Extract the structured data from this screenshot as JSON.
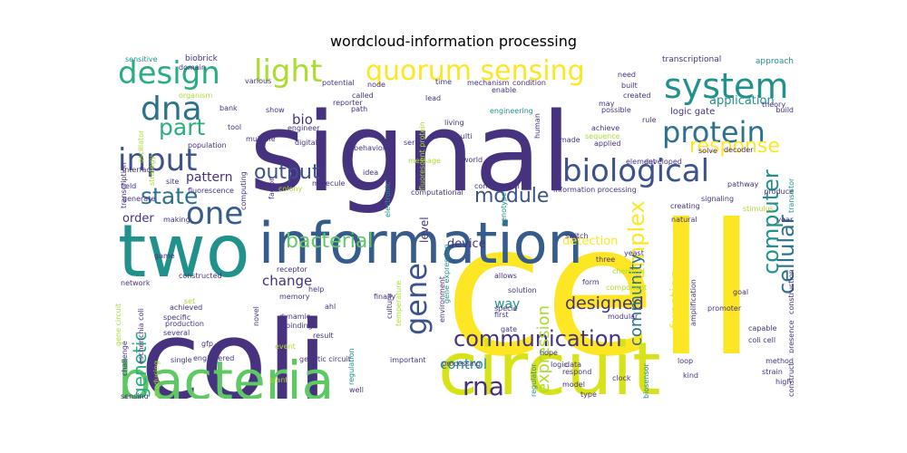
{
  "title": "wordcloud-information processing",
  "palette": {
    "dark_purple": "#46327e",
    "indigo": "#3b528b",
    "blue": "#365c8d",
    "slate": "#2c728e",
    "teal": "#21918c",
    "green_teal": "#28ae80",
    "green": "#5ec962",
    "lime": "#addc30",
    "yellow": "#fde725",
    "pale_green": "#9fda3a",
    "deep": "#440154"
  },
  "words": [
    {
      "text": "cell",
      "color": "#fde725"
    },
    {
      "text": "signal",
      "color": "#46327e"
    },
    {
      "text": "coli",
      "color": "#46327e"
    },
    {
      "text": "information",
      "color": "#365c8d"
    },
    {
      "text": "circuit",
      "color": "#d8e219"
    },
    {
      "text": "two",
      "color": "#21918c"
    },
    {
      "text": "bacteria",
      "color": "#5ec962"
    },
    {
      "text": "biological",
      "color": "#3b528b"
    },
    {
      "text": "system",
      "color": "#21918c"
    },
    {
      "text": "protein",
      "color": "#2c728e"
    },
    {
      "text": "quorum sensing",
      "color": "#fde725"
    },
    {
      "text": "design",
      "color": "#28ae80"
    },
    {
      "text": "input",
      "color": "#3b528b"
    },
    {
      "text": "dna",
      "color": "#2c728e"
    },
    {
      "text": "light",
      "color": "#addc30"
    },
    {
      "text": "one",
      "color": "#365c8d"
    },
    {
      "text": "output",
      "color": "#3b528b"
    },
    {
      "text": "response",
      "color": "#fde725"
    },
    {
      "text": "communication",
      "color": "#46327e"
    },
    {
      "text": "part",
      "color": "#28ae80"
    },
    {
      "text": "state",
      "color": "#2c728e"
    },
    {
      "text": "gene",
      "color": "#3b528b"
    },
    {
      "text": "bacterial",
      "color": "#5ec962"
    },
    {
      "text": "module",
      "color": "#3b528b"
    },
    {
      "text": "complex",
      "color": "#fde725"
    },
    {
      "text": "computer",
      "color": "#21918c"
    },
    {
      "text": "cellular",
      "color": "#2c728e"
    },
    {
      "text": "rna",
      "color": "#46327e"
    },
    {
      "text": "genetic",
      "color": "#28ae80"
    },
    {
      "text": "designed",
      "color": "#46327e"
    },
    {
      "text": "expression",
      "color": "#addc30"
    },
    {
      "text": "control",
      "color": "#21918c"
    },
    {
      "text": "function",
      "color": "#fde725"
    },
    {
      "text": "community",
      "color": "#2c728e"
    },
    {
      "text": "application",
      "color": "#21918c"
    },
    {
      "text": "change",
      "color": "#46327e"
    },
    {
      "text": "pattern",
      "color": "#46327e"
    },
    {
      "text": "bio",
      "color": "#46327e"
    },
    {
      "text": "order",
      "color": "#46327e"
    },
    {
      "text": "device",
      "color": "#46327e"
    },
    {
      "text": "detection",
      "color": "#fde725"
    },
    {
      "text": "way",
      "color": "#21918c"
    },
    {
      "text": "level",
      "color": "#46327e"
    },
    {
      "text": "logic gate",
      "color": "#46327e"
    },
    {
      "text": "transcriptional",
      "color": "#46327e"
    },
    {
      "text": "approach",
      "color": "#21918c"
    },
    {
      "text": "biobrick",
      "color": "#46327e"
    },
    {
      "text": "sensitive",
      "color": "#21918c"
    },
    {
      "text": "domain",
      "color": "#46327e"
    },
    {
      "text": "various",
      "color": "#46327e"
    },
    {
      "text": "potential",
      "color": "#46327e"
    },
    {
      "text": "node",
      "color": "#46327e"
    },
    {
      "text": "time",
      "color": "#46327e"
    },
    {
      "text": "mechanism",
      "color": "#46327e"
    },
    {
      "text": "condition",
      "color": "#46327e"
    },
    {
      "text": "need",
      "color": "#46327e"
    },
    {
      "text": "built",
      "color": "#46327e"
    },
    {
      "text": "organism",
      "color": "#addc30"
    },
    {
      "text": "called",
      "color": "#46327e"
    },
    {
      "text": "lead",
      "color": "#46327e"
    },
    {
      "text": "enable",
      "color": "#46327e"
    },
    {
      "text": "possible",
      "color": "#46327e"
    },
    {
      "text": "created",
      "color": "#46327e"
    },
    {
      "text": "theory",
      "color": "#46327e"
    },
    {
      "text": "build",
      "color": "#46327e"
    },
    {
      "text": "may",
      "color": "#46327e"
    },
    {
      "text": "rule",
      "color": "#46327e"
    },
    {
      "text": "achieve",
      "color": "#46327e"
    },
    {
      "text": "made",
      "color": "#46327e"
    },
    {
      "text": "sequence",
      "color": "#addc30"
    },
    {
      "text": "applied",
      "color": "#46327e"
    },
    {
      "text": "engineering",
      "color": "#21918c"
    },
    {
      "text": "bank",
      "color": "#46327e"
    },
    {
      "text": "show",
      "color": "#46327e"
    },
    {
      "text": "path",
      "color": "#46327e"
    },
    {
      "text": "reporter",
      "color": "#46327e"
    },
    {
      "text": "living",
      "color": "#46327e"
    },
    {
      "text": "tool",
      "color": "#46327e"
    },
    {
      "text": "engineer",
      "color": "#46327e"
    },
    {
      "text": "multiple",
      "color": "#46327e"
    },
    {
      "text": "population",
      "color": "#46327e"
    },
    {
      "text": "digital",
      "color": "#46327e"
    },
    {
      "text": "behavior",
      "color": "#46327e"
    },
    {
      "text": "series",
      "color": "#46327e"
    },
    {
      "text": "multi",
      "color": "#46327e"
    },
    {
      "text": "human",
      "color": "#46327e"
    },
    {
      "text": "world",
      "color": "#46327e"
    },
    {
      "text": "message",
      "color": "#addc30"
    },
    {
      "text": "element",
      "color": "#46327e"
    },
    {
      "text": "developed",
      "color": "#46327e"
    },
    {
      "text": "solve",
      "color": "#46327e"
    },
    {
      "text": "decoder",
      "color": "#46327e"
    },
    {
      "text": "site",
      "color": "#46327e"
    },
    {
      "text": "interface",
      "color": "#46327e"
    },
    {
      "text": "fluorescence",
      "color": "#46327e"
    },
    {
      "text": "idea",
      "color": "#46327e"
    },
    {
      "text": "molecule",
      "color": "#46327e"
    },
    {
      "text": "fluorescent protein",
      "color": "#addc30"
    },
    {
      "text": "pathway",
      "color": "#46327e"
    },
    {
      "text": "signaling",
      "color": "#46327e"
    },
    {
      "text": "produce",
      "color": "#46327e"
    },
    {
      "text": "year",
      "color": "#46327e"
    },
    {
      "text": "field",
      "color": "#46327e"
    },
    {
      "text": "colony",
      "color": "#addc30"
    },
    {
      "text": "computational",
      "color": "#46327e"
    },
    {
      "text": "combination",
      "color": "#46327e"
    },
    {
      "text": "information processing",
      "color": "#46327e"
    },
    {
      "text": "natural",
      "color": "#46327e"
    },
    {
      "text": "creating",
      "color": "#46327e"
    },
    {
      "text": "stimulus",
      "color": "#addc30"
    },
    {
      "text": "generate",
      "color": "#46327e"
    },
    {
      "text": "making",
      "color": "#46327e"
    },
    {
      "text": "computing",
      "color": "#46327e"
    },
    {
      "text": "factor",
      "color": "#46327e"
    },
    {
      "text": "electronic",
      "color": "#21918c"
    },
    {
      "text": "genotype",
      "color": "#21918c"
    },
    {
      "text": "switch",
      "color": "#46327e"
    },
    {
      "text": "transistor",
      "color": "#21918c"
    },
    {
      "text": "game",
      "color": "#46327e"
    },
    {
      "text": "receptor",
      "color": "#46327e"
    },
    {
      "text": "yeast",
      "color": "#46327e"
    },
    {
      "text": "three",
      "color": "#46327e"
    },
    {
      "text": "chemical",
      "color": "#addc30"
    },
    {
      "text": "goal",
      "color": "#46327e"
    },
    {
      "text": "constructed",
      "color": "#46327e"
    },
    {
      "text": "allows",
      "color": "#46327e"
    },
    {
      "text": "solution",
      "color": "#46327e"
    },
    {
      "text": "form",
      "color": "#46327e"
    },
    {
      "text": "network",
      "color": "#46327e"
    },
    {
      "text": "finally",
      "color": "#46327e"
    },
    {
      "text": "specie",
      "color": "#46327e"
    },
    {
      "text": "help",
      "color": "#46327e"
    },
    {
      "text": "component",
      "color": "#addc30"
    },
    {
      "text": "construction",
      "color": "#46327e"
    },
    {
      "text": "set",
      "color": "#addc30"
    },
    {
      "text": "memory",
      "color": "#46327e"
    },
    {
      "text": "gene expression",
      "color": "#21918c"
    },
    {
      "text": "achieved",
      "color": "#46327e"
    },
    {
      "text": "ahl",
      "color": "#46327e"
    },
    {
      "text": "culture",
      "color": "#46327e"
    },
    {
      "text": "environment",
      "color": "#46327e"
    },
    {
      "text": "amplification",
      "color": "#46327e"
    },
    {
      "text": "specific",
      "color": "#46327e"
    },
    {
      "text": "dynamic",
      "color": "#46327e"
    },
    {
      "text": "temperature",
      "color": "#addc30"
    },
    {
      "text": "first",
      "color": "#46327e"
    },
    {
      "text": "promoter",
      "color": "#46327e"
    },
    {
      "text": "production",
      "color": "#46327e"
    },
    {
      "text": "novel",
      "color": "#46327e"
    },
    {
      "text": "binding",
      "color": "#46327e"
    },
    {
      "text": "modular",
      "color": "#46327e"
    },
    {
      "text": "several",
      "color": "#46327e"
    },
    {
      "text": "gate",
      "color": "#46327e"
    },
    {
      "text": "capable",
      "color": "#46327e"
    },
    {
      "text": "gfp",
      "color": "#46327e"
    },
    {
      "text": "event",
      "color": "#addc30"
    },
    {
      "text": "result",
      "color": "#46327e"
    },
    {
      "text": "coli cell",
      "color": "#46327e"
    },
    {
      "text": "presence",
      "color": "#46327e"
    },
    {
      "text": "challenge",
      "color": "#46327e"
    },
    {
      "text": "engineered",
      "color": "#46327e"
    },
    {
      "text": "genetic circuit",
      "color": "#46327e"
    },
    {
      "text": "processing",
      "color": "#46327e"
    },
    {
      "text": "hope",
      "color": "#46327e"
    },
    {
      "text": "logic",
      "color": "#46327e"
    },
    {
      "text": "loop",
      "color": "#46327e"
    },
    {
      "text": "method",
      "color": "#46327e"
    },
    {
      "text": "single",
      "color": "#46327e"
    },
    {
      "text": "important",
      "color": "#46327e"
    },
    {
      "text": "data",
      "color": "#46327e"
    },
    {
      "text": "respond",
      "color": "#46327e"
    },
    {
      "text": "clock",
      "color": "#46327e"
    },
    {
      "text": "kind",
      "color": "#46327e"
    },
    {
      "text": "strain",
      "color": "#46327e"
    },
    {
      "text": "high",
      "color": "#46327e"
    },
    {
      "text": "sensing",
      "color": "#46327e"
    },
    {
      "text": "plant",
      "color": "#addc30"
    },
    {
      "text": "well",
      "color": "#46327e"
    },
    {
      "text": "model",
      "color": "#46327e"
    },
    {
      "text": "type",
      "color": "#46327e"
    },
    {
      "text": "biosensor",
      "color": "#21918c"
    },
    {
      "text": "construct",
      "color": "#46327e"
    },
    {
      "text": "transcription",
      "color": "#46327e"
    },
    {
      "text": "strategy",
      "color": "#addc30"
    },
    {
      "text": "oscillator",
      "color": "#addc30"
    },
    {
      "text": "producing",
      "color": "#addc30"
    },
    {
      "text": "escherichia coli",
      "color": "#46327e"
    },
    {
      "text": "regulator",
      "color": "#21918c"
    },
    {
      "text": "regulation",
      "color": "#21918c"
    },
    {
      "text": "gene circuit",
      "color": "#addc30"
    }
  ]
}
